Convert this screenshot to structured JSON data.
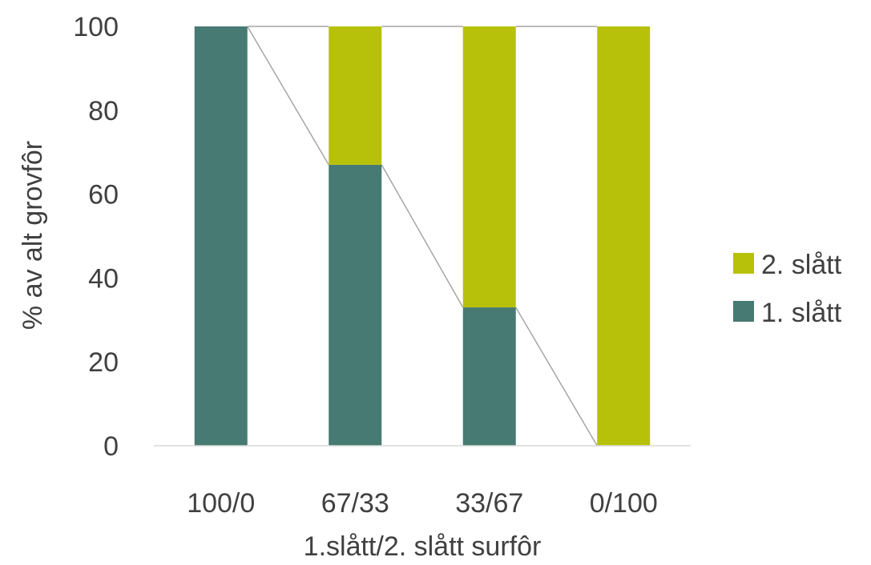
{
  "chart_data": {
    "type": "bar",
    "stacked": true,
    "categories": [
      "100/0",
      "67/33",
      "33/67",
      "0/100"
    ],
    "series": [
      {
        "name": "1. slått",
        "values": [
          100,
          67,
          33,
          0
        ],
        "color": "#467a72"
      },
      {
        "name": "2. slått",
        "values": [
          0,
          33,
          67,
          100
        ],
        "color": "#b7c10a"
      }
    ],
    "series_lines": true,
    "xlabel": "1.slått/2. slått surfôr",
    "ylabel": "% av alt grovfôr",
    "ylim": [
      0,
      100
    ],
    "yticks": [
      0,
      20,
      40,
      60,
      80,
      100
    ],
    "grid": false,
    "legend_position": "right"
  }
}
